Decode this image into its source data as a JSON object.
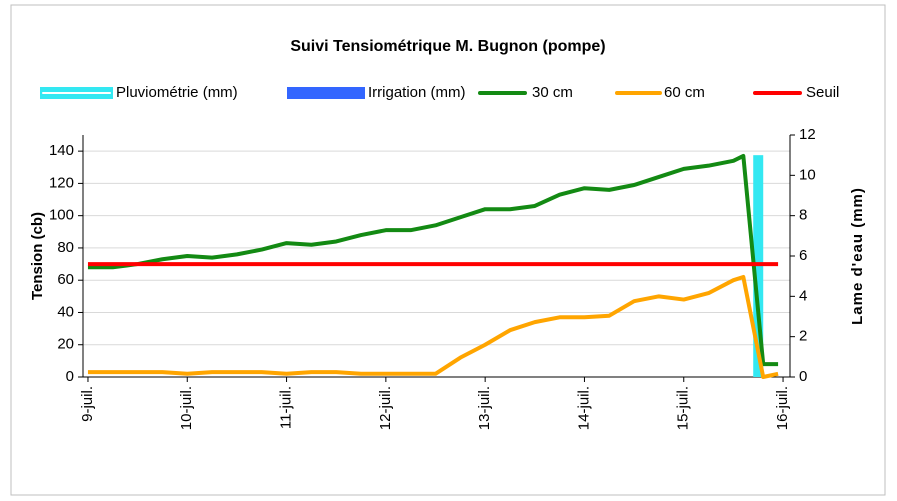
{
  "chart_data": {
    "type": "line",
    "title": "Suivi Tensiométrique M. Bugnon (pompe)",
    "ylabel": "Tension (cb)",
    "y2label": "Lame d'eau (mm)",
    "xlim": [
      8.95,
      16.07
    ],
    "xticks": [
      {
        "value": 9,
        "label": "9-juil."
      },
      {
        "value": 10,
        "label": "10-juil."
      },
      {
        "value": 11,
        "label": "11-juil."
      },
      {
        "value": 12,
        "label": "12-juil."
      },
      {
        "value": 13,
        "label": "13-juil."
      },
      {
        "value": 14,
        "label": "14-juil."
      },
      {
        "value": 15,
        "label": "15-juil."
      },
      {
        "value": 16,
        "label": "16-juil."
      }
    ],
    "ylim": [
      0,
      150
    ],
    "yticks": [
      0,
      20,
      40,
      60,
      80,
      100,
      120,
      140
    ],
    "y2lim": [
      0,
      12
    ],
    "y2ticks": [
      0,
      2,
      4,
      6,
      8,
      10,
      12
    ],
    "grid": true,
    "series": [
      {
        "name": "Pluviométrie (mm)",
        "kind": "bar",
        "axis": "y2",
        "color": "#33e8f2",
        "x": [
          15.75
        ],
        "values": [
          11
        ]
      },
      {
        "name": "Irrigation (mm)",
        "kind": "bar",
        "axis": "y2",
        "color": "#3366ff",
        "x": [],
        "values": []
      },
      {
        "name": "30 cm",
        "kind": "line",
        "color": "#138a13",
        "x": [
          9,
          9.25,
          9.5,
          9.75,
          10,
          10.25,
          10.5,
          10.75,
          11,
          11.25,
          11.5,
          11.75,
          12,
          12.25,
          12.5,
          12.75,
          13,
          13.25,
          13.5,
          13.75,
          14,
          14.25,
          14.5,
          14.75,
          15,
          15.25,
          15.5,
          15.6,
          15.8,
          15.95
        ],
        "values": [
          68,
          68,
          70,
          73,
          75,
          74,
          76,
          79,
          83,
          82,
          84,
          88,
          91,
          91,
          94,
          99,
          104,
          104,
          106,
          113,
          117,
          116,
          119,
          124,
          129,
          131,
          134,
          137,
          8,
          8
        ]
      },
      {
        "name": "60 cm",
        "kind": "line",
        "color": "#ffa500",
        "x": [
          9,
          9.25,
          9.5,
          9.75,
          10,
          10.25,
          10.5,
          10.75,
          11,
          11.25,
          11.5,
          11.75,
          12,
          12.25,
          12.5,
          12.75,
          13,
          13.25,
          13.5,
          13.75,
          14,
          14.25,
          14.5,
          14.75,
          15,
          15.25,
          15.5,
          15.6,
          15.8,
          15.95
        ],
        "values": [
          3,
          3,
          3,
          3,
          2,
          3,
          3,
          3,
          2,
          3,
          3,
          2,
          2,
          2,
          2,
          12,
          20,
          29,
          34,
          37,
          37,
          38,
          47,
          50,
          48,
          52,
          60,
          62,
          0,
          2
        ]
      },
      {
        "name": "Seuil",
        "kind": "line",
        "color": "#ff0000",
        "x": [
          9,
          15.95
        ],
        "values": [
          70,
          70
        ]
      }
    ]
  }
}
